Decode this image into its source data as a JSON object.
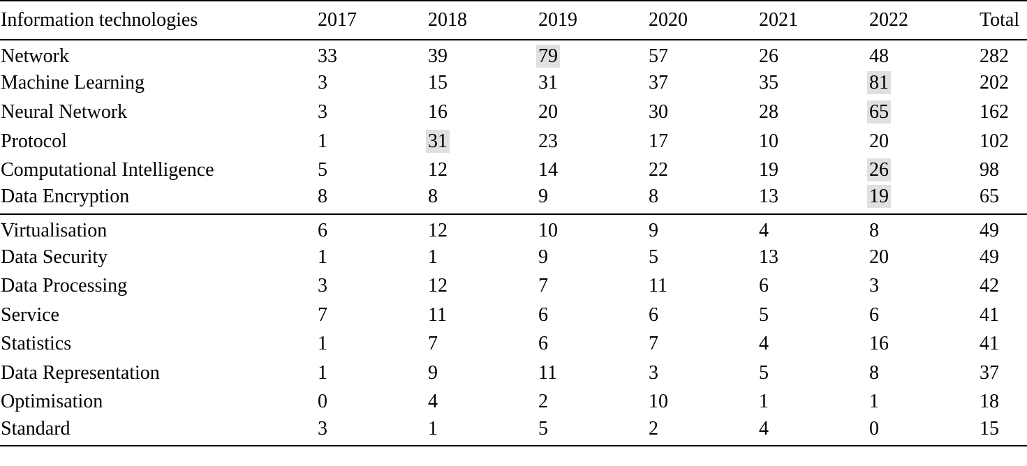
{
  "table": {
    "headers": [
      "Information technologies",
      "2017",
      "2018",
      "2019",
      "2020",
      "2021",
      "2022",
      "Total"
    ],
    "group_a": [
      {
        "name": "Network",
        "values": [
          "33",
          "39",
          "79",
          "57",
          "26",
          "48",
          "282"
        ],
        "highlight": [
          2
        ]
      },
      {
        "name": "Machine Learning",
        "values": [
          "3",
          "15",
          "31",
          "37",
          "35",
          "81",
          "202"
        ],
        "highlight": [
          5
        ]
      },
      {
        "name": "Neural Network",
        "values": [
          "3",
          "16",
          "20",
          "30",
          "28",
          "65",
          "162"
        ],
        "highlight": [
          5
        ]
      },
      {
        "name": "Protocol",
        "values": [
          "1",
          "31",
          "23",
          "17",
          "10",
          "20",
          "102"
        ],
        "highlight": [
          1
        ]
      },
      {
        "name": "Computational Intelligence",
        "values": [
          "5",
          "12",
          "14",
          "22",
          "19",
          "26",
          "98"
        ],
        "highlight": [
          5
        ]
      },
      {
        "name": "Data Encryption",
        "values": [
          "8",
          "8",
          "9",
          "8",
          "13",
          "19",
          "65"
        ],
        "highlight": [
          5
        ]
      }
    ],
    "group_b": [
      {
        "name": "Virtualisation",
        "values": [
          "6",
          "12",
          "10",
          "9",
          "4",
          "8",
          "49"
        ],
        "highlight": []
      },
      {
        "name": "Data Security",
        "values": [
          "1",
          "1",
          "9",
          "5",
          "13",
          "20",
          "49"
        ],
        "highlight": []
      },
      {
        "name": "Data Processing",
        "values": [
          "3",
          "12",
          "7",
          "11",
          "6",
          "3",
          "42"
        ],
        "highlight": []
      },
      {
        "name": "Service",
        "values": [
          "7",
          "11",
          "6",
          "6",
          "5",
          "6",
          "41"
        ],
        "highlight": []
      },
      {
        "name": "Statistics",
        "values": [
          "1",
          "7",
          "6",
          "7",
          "4",
          "16",
          "41"
        ],
        "highlight": []
      },
      {
        "name": "Data Representation",
        "values": [
          "1",
          "9",
          "11",
          "3",
          "5",
          "8",
          "37"
        ],
        "highlight": []
      },
      {
        "name": "Optimisation",
        "values": [
          "0",
          "4",
          "2",
          "10",
          "1",
          "1",
          "18"
        ],
        "highlight": []
      },
      {
        "name": "Standard",
        "values": [
          "3",
          "1",
          "5",
          "2",
          "4",
          "0",
          "15"
        ],
        "highlight": []
      }
    ],
    "highlight_color": "#e0e0e0"
  }
}
